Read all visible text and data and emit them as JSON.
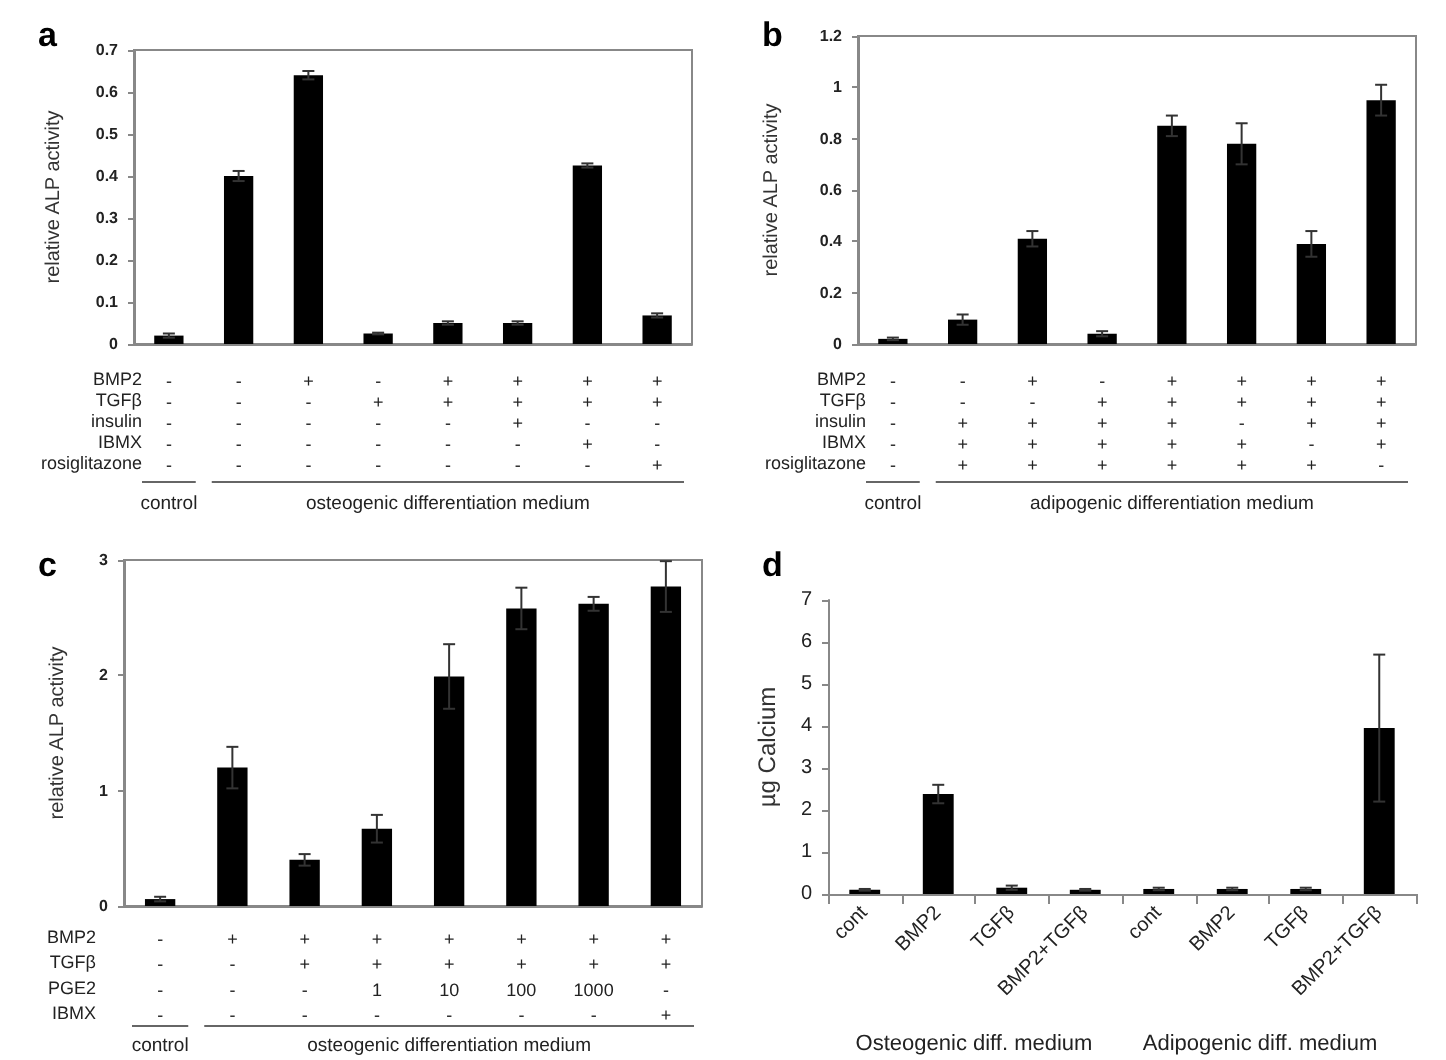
{
  "chart_data": [
    {
      "type": "bar",
      "title": "a",
      "ylabel": "relative ALP activity",
      "categories": [
        "-\n-\n-\n-\n-",
        "-\n-\n-\n-\n-",
        "+\n-\n-\n-\n-",
        "-\n+\n-\n-\n-",
        "+\n+\n-\n-\n-",
        "+\n+\n+\n-\n-",
        "+\n+\n-\n+\n-",
        "+\n+\n-\n-\n+"
      ],
      "values": [
        0.02,
        0.4,
        0.64,
        0.025,
        0.05,
        0.05,
        0.425,
        0.068
      ],
      "errors": [
        0.005,
        0.012,
        0.01,
        0.002,
        0.004,
        0.004,
        0.005,
        0.005
      ],
      "color": "#000000",
      "ylim": [
        0,
        0.7
      ],
      "yticks": [
        0,
        0.1,
        0.2,
        0.3,
        0.4,
        0.5,
        0.6,
        0.7
      ],
      "annotations": [
        "BMP2\nTGFβ\ninsulin\nIBMX\nrosiglitazone",
        "control",
        "osteogenic differentiation medium"
      ]
    },
    {
      "type": "bar",
      "title": "b",
      "ylabel": "relative ALP activity",
      "categories": [
        "-\n-\n-\n-\n-",
        "-\n-\n+\n+\n+",
        "+\n-\n+\n+\n+",
        "-\n+\n+\n+\n+",
        "+\n+\n+\n+\n+",
        "+\n+\n-\n+\n+",
        "+\n+\n+\n-\n+",
        "+\n+\n+\n+\n-"
      ],
      "values": [
        0.02,
        0.095,
        0.41,
        0.04,
        0.85,
        0.78,
        0.39,
        0.95
      ],
      "errors": [
        0.005,
        0.02,
        0.03,
        0.01,
        0.04,
        0.08,
        0.05,
        0.06
      ],
      "color": "#000000",
      "ylim": [
        0,
        1.2
      ],
      "yticks": [
        0,
        0.2,
        0.4,
        0.6,
        0.8,
        1,
        1.2
      ],
      "annotations": [
        "BMP2\nTGFβ\ninsulin\nIBMX\nrosiglitazone",
        "control",
        "adipogenic differentiation medium"
      ]
    },
    {
      "type": "bar",
      "title": "c",
      "ylabel": "relative ALP activity",
      "categories": [
        "-\n-\n-\n-",
        "+\n-\n-\n-",
        "+\n+\n-\n-",
        "+\n+\n1\n-",
        "+\n+\n10\n-",
        "+\n+\n100\n-",
        "+\n+\n1000\n-",
        "+\n+\n-\n+"
      ],
      "values": [
        0.06,
        1.2,
        0.4,
        0.67,
        1.99,
        2.58,
        2.62,
        2.77
      ],
      "errors": [
        0.02,
        0.18,
        0.05,
        0.12,
        0.28,
        0.18,
        0.06,
        0.22
      ],
      "color": "#000000",
      "ylim": [
        0,
        3
      ],
      "yticks": [
        0,
        1,
        2,
        3
      ],
      "annotations": [
        "BMP2\nTGFβ\nPGE2\nIBMX",
        "control",
        "osteogenic differentiation medium"
      ]
    },
    {
      "type": "bar",
      "title": "d",
      "ylabel": "µg Calcium",
      "categories": [
        "cont",
        "BMP2",
        "TGFβ",
        "BMP2+TGFβ",
        "cont",
        "BMP2",
        "TGFβ",
        "BMP2+TGFβ"
      ],
      "values": [
        0.1,
        2.38,
        0.15,
        0.1,
        0.12,
        0.12,
        0.12,
        3.95
      ],
      "errors": [
        0.02,
        0.22,
        0.05,
        0.02,
        0.03,
        0.03,
        0.03,
        1.75
      ],
      "color": "#000000",
      "ylim": [
        0,
        7
      ],
      "yticks": [
        0,
        1,
        2,
        3,
        4,
        5,
        6,
        7
      ],
      "annotations": [
        "Osteogenic diff. medium",
        "Adipogenic diff. medium"
      ]
    }
  ]
}
